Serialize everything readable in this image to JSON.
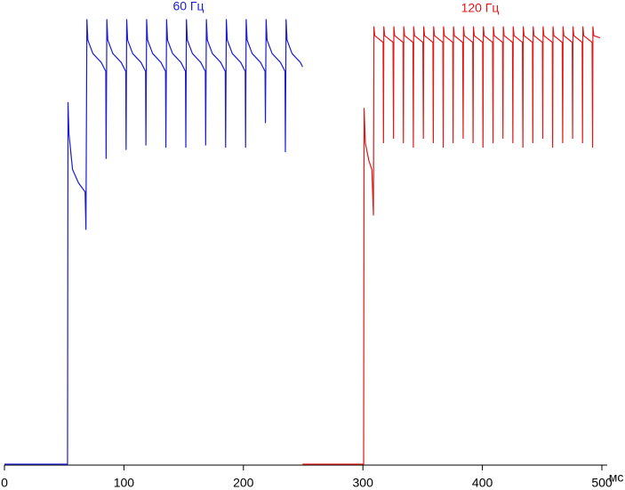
{
  "chart_data": {
    "type": "line",
    "x_label": "мс",
    "xlim": [
      0,
      500
    ],
    "xticks": [
      0,
      100,
      200,
      300,
      400,
      500
    ],
    "ylim": [
      0,
      100
    ],
    "grid": false,
    "series": [
      {
        "name": "60 Гц",
        "color": "#1c1cd0",
        "x": [
          0,
          52.8,
          53.2,
          54,
          57,
          62,
          67.5,
          68.2,
          69,
          69.8,
          74,
          81,
          84.8,
          85.1,
          85.7,
          86.5,
          90.7,
          97.7,
          101.5,
          101.8,
          102.3,
          103.1,
          107.3,
          114.3,
          118.1,
          118.4,
          119,
          119.8,
          124,
          131,
          134.8,
          135.1,
          135.7,
          136.5,
          140.7,
          147.7,
          151.5,
          151.8,
          152.3,
          153.1,
          157.3,
          164.3,
          168.1,
          168.4,
          169,
          169.8,
          174,
          181,
          184.8,
          185.1,
          185.7,
          186.5,
          190.7,
          197.7,
          201.5,
          201.8,
          202.3,
          203.1,
          207.3,
          214.3,
          218.1,
          218.4,
          219,
          219.8,
          224,
          231,
          234.8,
          235.1,
          235.7,
          236.5,
          240.7,
          247.7,
          249.5
        ],
        "values": [
          0,
          0,
          81,
          74,
          66,
          63,
          61,
          52.6,
          99.6,
          95,
          92,
          90,
          88,
          68.5,
          99.6,
          95,
          92,
          90,
          88,
          70.5,
          99.6,
          95,
          92,
          90,
          88,
          71.5,
          99.6,
          95,
          92,
          90,
          88,
          71,
          99.6,
          95,
          92,
          90,
          88,
          71,
          99.6,
          95,
          92,
          90,
          88,
          71.5,
          99.6,
          95,
          92,
          90,
          88,
          71,
          99.6,
          95,
          92,
          90,
          88,
          71,
          99.6,
          95,
          92,
          90,
          88,
          76.5,
          99.6,
          95,
          92,
          90,
          88,
          70,
          99.6,
          95,
          92,
          90,
          89
        ]
      },
      {
        "name": "120 Гц",
        "color": "#e01818",
        "x": [
          249.5,
          300.6,
          301,
          302,
          305,
          307.5,
          308.8,
          309.2,
          309.9,
          316.9,
          317.2,
          317.5,
          318.2,
          325.2,
          325.6,
          325.9,
          326.6,
          333.6,
          333.9,
          334.2,
          334.9,
          341.9,
          342.2,
          342.5,
          343.2,
          350.2,
          350.6,
          350.9,
          351.6,
          358.6,
          358.9,
          359.2,
          359.9,
          366.9,
          367.2,
          367.5,
          368.2,
          375.2,
          375.5,
          375.8,
          376.5,
          383.5,
          383.9,
          384.2,
          384.9,
          391.9,
          392.2,
          392.5,
          393.2,
          400.2,
          400.5,
          400.8,
          401.5,
          408.5,
          408.9,
          409.2,
          409.9,
          416.9,
          417.2,
          417.5,
          418.2,
          425.2,
          425.5,
          425.8,
          426.5,
          433.5,
          433.9,
          434.2,
          434.9,
          441.9,
          442.2,
          442.5,
          443.2,
          450.2,
          450.5,
          450.8,
          451.5,
          458.5,
          458.8,
          459.1,
          459.8,
          466.8,
          467.2,
          467.5,
          468.2,
          475.2,
          475.5,
          475.8,
          476.5,
          483.5,
          483.8,
          484.1,
          484.8,
          491.8,
          492.2,
          492.5,
          493.2,
          498.5
        ],
        "values": [
          0,
          0,
          79.7,
          72,
          68,
          66,
          55.8,
          98,
          96,
          94.5,
          72,
          98,
          96,
          94.5,
          73,
          98,
          96,
          94.5,
          72,
          98,
          96,
          94.5,
          71,
          98,
          96,
          94.5,
          73,
          98,
          96,
          94.5,
          72,
          98,
          96,
          94.5,
          71,
          98,
          96,
          94.5,
          72,
          98,
          96,
          94.5,
          73,
          98,
          96,
          94.5,
          72,
          98,
          96,
          94.5,
          71,
          98,
          96,
          94.5,
          72,
          98,
          96,
          94.5,
          73,
          98,
          96,
          94.5,
          72,
          98,
          96,
          94.5,
          71,
          98,
          96,
          94.5,
          72,
          98,
          96,
          94.5,
          73,
          98,
          96,
          94.5,
          71,
          98,
          96,
          94.5,
          72,
          98,
          96,
          94.5,
          73,
          98,
          96,
          94.5,
          72,
          98,
          96,
          94.5,
          71,
          98,
          96,
          95.5
        ]
      }
    ]
  }
}
